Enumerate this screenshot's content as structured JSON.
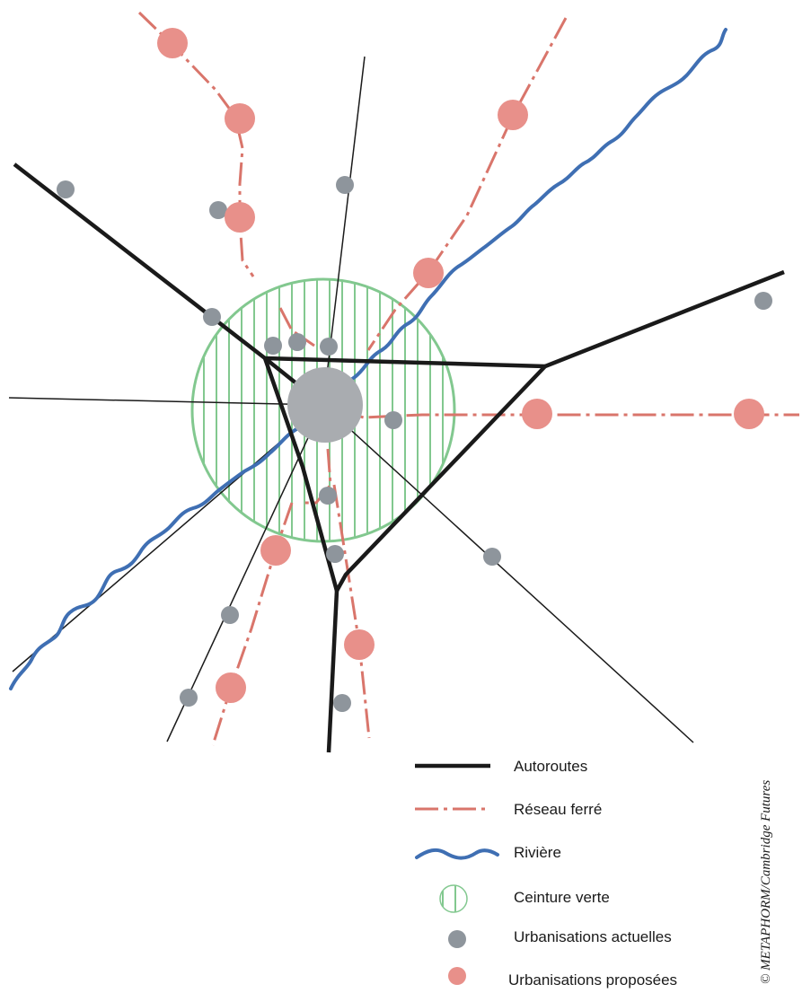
{
  "legend": {
    "highways": "Autoroutes",
    "rail": "Réseau ferré",
    "river": "Rivière",
    "greenbelt": "Ceinture verte",
    "existing": "Urbanisations actuelles",
    "proposed": "Urbanisations proposées"
  },
  "credit": "© METAPHORM/Cambridge Futures",
  "colors": {
    "highway": "#1a1a1a",
    "rail": "#d9756b",
    "river": "#3f6fb3",
    "greenbelt": "#82c88f",
    "existing": "#8e959c",
    "proposed": "#e8908a",
    "center": "#a9acb0"
  }
}
